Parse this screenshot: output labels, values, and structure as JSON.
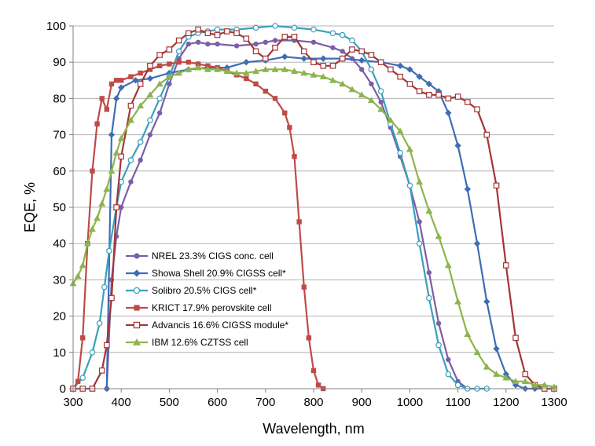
{
  "chart_data": {
    "type": "line",
    "title": "",
    "xlabel": "Wavelength, nm",
    "ylabel": "EQE, %",
    "xlim": [
      300,
      1300
    ],
    "ylim": [
      0,
      100
    ],
    "xticks": [
      300,
      400,
      500,
      600,
      700,
      800,
      900,
      1000,
      1100,
      1200,
      1300
    ],
    "yticks": [
      0,
      10,
      20,
      30,
      40,
      50,
      60,
      70,
      80,
      90,
      100
    ],
    "xtick_labels": [
      "300",
      "400",
      "500",
      "600",
      "700",
      "800",
      "900",
      "1000",
      "1100",
      "1200",
      "1300"
    ],
    "ytick_labels": [
      "0",
      "10",
      "20",
      "30",
      "40",
      "50",
      "60",
      "70",
      "80",
      "90",
      "100"
    ],
    "grid": "horizontal",
    "legend_position": "lower-left inside plot",
    "series": [
      {
        "name": "NREL 23.3% CIGS conc. cell",
        "color": "#7B5EA7",
        "marker": "circle",
        "points": [
          [
            370,
            0
          ],
          [
            380,
            30
          ],
          [
            390,
            42
          ],
          [
            400,
            50
          ],
          [
            420,
            57
          ],
          [
            440,
            63
          ],
          [
            460,
            70
          ],
          [
            480,
            76
          ],
          [
            500,
            84
          ],
          [
            520,
            91
          ],
          [
            540,
            95
          ],
          [
            560,
            95.5
          ],
          [
            580,
            95
          ],
          [
            600,
            95
          ],
          [
            640,
            94.5
          ],
          [
            680,
            95
          ],
          [
            700,
            95.5
          ],
          [
            720,
            96
          ],
          [
            760,
            96
          ],
          [
            800,
            95.5
          ],
          [
            840,
            94
          ],
          [
            860,
            93
          ],
          [
            880,
            91
          ],
          [
            900,
            88
          ],
          [
            920,
            84
          ],
          [
            940,
            79
          ],
          [
            960,
            72
          ],
          [
            980,
            64
          ],
          [
            1000,
            56
          ],
          [
            1020,
            46
          ],
          [
            1040,
            32
          ],
          [
            1060,
            18
          ],
          [
            1080,
            8
          ],
          [
            1100,
            2
          ],
          [
            1120,
            0
          ]
        ]
      },
      {
        "name": "Showa Shell 20.9% CIGSS cell*",
        "color": "#3D6DB5",
        "marker": "diamond",
        "points": [
          [
            370,
            0
          ],
          [
            380,
            70
          ],
          [
            390,
            80
          ],
          [
            400,
            83
          ],
          [
            430,
            85
          ],
          [
            460,
            85.5
          ],
          [
            500,
            87
          ],
          [
            540,
            88
          ],
          [
            580,
            88.5
          ],
          [
            620,
            88.5
          ],
          [
            660,
            90
          ],
          [
            700,
            90.5
          ],
          [
            740,
            91.5
          ],
          [
            780,
            91
          ],
          [
            820,
            91
          ],
          [
            860,
            91
          ],
          [
            900,
            90.5
          ],
          [
            940,
            90
          ],
          [
            980,
            89
          ],
          [
            1000,
            88
          ],
          [
            1020,
            86
          ],
          [
            1040,
            84
          ],
          [
            1060,
            82
          ],
          [
            1080,
            76
          ],
          [
            1100,
            67
          ],
          [
            1120,
            55
          ],
          [
            1140,
            40
          ],
          [
            1160,
            24
          ],
          [
            1180,
            11
          ],
          [
            1200,
            4
          ],
          [
            1220,
            1
          ],
          [
            1240,
            0
          ],
          [
            1260,
            0
          ],
          [
            1280,
            0
          ],
          [
            1300,
            0
          ]
        ]
      },
      {
        "name": "Solibro 20.5% CIGS cell*",
        "color": "#3AA0BE",
        "marker": "open-circle",
        "points": [
          [
            300,
            0
          ],
          [
            320,
            3
          ],
          [
            340,
            10
          ],
          [
            355,
            18
          ],
          [
            365,
            28
          ],
          [
            375,
            38
          ],
          [
            390,
            50
          ],
          [
            400,
            57
          ],
          [
            420,
            63
          ],
          [
            440,
            68
          ],
          [
            460,
            74
          ],
          [
            480,
            80
          ],
          [
            500,
            86
          ],
          [
            520,
            93
          ],
          [
            540,
            97
          ],
          [
            560,
            98
          ],
          [
            580,
            98.5
          ],
          [
            600,
            99
          ],
          [
            640,
            99
          ],
          [
            680,
            99.5
          ],
          [
            720,
            100
          ],
          [
            760,
            99.5
          ],
          [
            800,
            99
          ],
          [
            840,
            98
          ],
          [
            860,
            97.5
          ],
          [
            880,
            96
          ],
          [
            900,
            93
          ],
          [
            920,
            88
          ],
          [
            940,
            82
          ],
          [
            960,
            73
          ],
          [
            980,
            65
          ],
          [
            1000,
            56
          ],
          [
            1020,
            40
          ],
          [
            1040,
            25
          ],
          [
            1060,
            12
          ],
          [
            1080,
            4
          ],
          [
            1100,
            1
          ],
          [
            1120,
            0
          ],
          [
            1140,
            0
          ],
          [
            1160,
            0
          ]
        ]
      },
      {
        "name": "KRICT 17.9% perovskite cell",
        "color": "#BE4B48",
        "marker": "square",
        "points": [
          [
            300,
            0
          ],
          [
            310,
            2
          ],
          [
            320,
            14
          ],
          [
            330,
            40
          ],
          [
            340,
            60
          ],
          [
            350,
            73
          ],
          [
            360,
            80
          ],
          [
            370,
            77
          ],
          [
            380,
            84
          ],
          [
            390,
            85
          ],
          [
            400,
            85
          ],
          [
            420,
            86
          ],
          [
            440,
            87
          ],
          [
            460,
            88
          ],
          [
            480,
            89
          ],
          [
            500,
            89.5
          ],
          [
            520,
            90
          ],
          [
            540,
            90
          ],
          [
            560,
            89.5
          ],
          [
            580,
            89
          ],
          [
            600,
            88.5
          ],
          [
            620,
            87.5
          ],
          [
            640,
            86.5
          ],
          [
            660,
            85.5
          ],
          [
            680,
            84
          ],
          [
            700,
            82
          ],
          [
            720,
            80
          ],
          [
            740,
            76
          ],
          [
            750,
            72
          ],
          [
            760,
            64
          ],
          [
            770,
            46
          ],
          [
            780,
            28
          ],
          [
            790,
            14
          ],
          [
            800,
            5
          ],
          [
            810,
            1
          ],
          [
            820,
            0
          ]
        ]
      },
      {
        "name": "Advancis 16.6% CIGSS module*",
        "color": "#A33535",
        "marker": "open-square",
        "points": [
          [
            300,
            0
          ],
          [
            320,
            0
          ],
          [
            340,
            0
          ],
          [
            360,
            5
          ],
          [
            370,
            12
          ],
          [
            380,
            25
          ],
          [
            390,
            50
          ],
          [
            400,
            64
          ],
          [
            420,
            78
          ],
          [
            440,
            84
          ],
          [
            460,
            89
          ],
          [
            480,
            92
          ],
          [
            500,
            93.5
          ],
          [
            520,
            96
          ],
          [
            540,
            98
          ],
          [
            560,
            99
          ],
          [
            580,
            98
          ],
          [
            600,
            97.5
          ],
          [
            620,
            98.5
          ],
          [
            640,
            98
          ],
          [
            660,
            96.5
          ],
          [
            680,
            93
          ],
          [
            700,
            91
          ],
          [
            720,
            94
          ],
          [
            740,
            97
          ],
          [
            760,
            97
          ],
          [
            780,
            93
          ],
          [
            800,
            90
          ],
          [
            820,
            89
          ],
          [
            840,
            89
          ],
          [
            860,
            91
          ],
          [
            880,
            93.5
          ],
          [
            900,
            93
          ],
          [
            920,
            92
          ],
          [
            940,
            90
          ],
          [
            960,
            88
          ],
          [
            980,
            86
          ],
          [
            1000,
            84
          ],
          [
            1020,
            82
          ],
          [
            1040,
            81
          ],
          [
            1060,
            81
          ],
          [
            1080,
            80
          ],
          [
            1100,
            80.5
          ],
          [
            1120,
            79
          ],
          [
            1140,
            77
          ],
          [
            1160,
            70
          ],
          [
            1180,
            56
          ],
          [
            1200,
            34
          ],
          [
            1220,
            14
          ],
          [
            1240,
            4
          ],
          [
            1260,
            1
          ],
          [
            1280,
            0
          ],
          [
            1300,
            0
          ]
        ]
      },
      {
        "name": "IBM 12.6% CZTSS cell",
        "color": "#8DB44D",
        "marker": "triangle",
        "points": [
          [
            300,
            29
          ],
          [
            310,
            31
          ],
          [
            320,
            34
          ],
          [
            330,
            40
          ],
          [
            340,
            44
          ],
          [
            350,
            47
          ],
          [
            360,
            51
          ],
          [
            370,
            55
          ],
          [
            380,
            60
          ],
          [
            390,
            65
          ],
          [
            400,
            69
          ],
          [
            420,
            74
          ],
          [
            440,
            78
          ],
          [
            460,
            81
          ],
          [
            480,
            84
          ],
          [
            500,
            86
          ],
          [
            520,
            87
          ],
          [
            540,
            88
          ],
          [
            560,
            88.5
          ],
          [
            580,
            88
          ],
          [
            600,
            88
          ],
          [
            620,
            87.5
          ],
          [
            640,
            87
          ],
          [
            660,
            87
          ],
          [
            680,
            87.5
          ],
          [
            700,
            88
          ],
          [
            720,
            88
          ],
          [
            740,
            88
          ],
          [
            760,
            87.5
          ],
          [
            780,
            87
          ],
          [
            800,
            86.5
          ],
          [
            820,
            86
          ],
          [
            840,
            85
          ],
          [
            860,
            84
          ],
          [
            880,
            82.5
          ],
          [
            900,
            81
          ],
          [
            920,
            79.5
          ],
          [
            940,
            77
          ],
          [
            960,
            74
          ],
          [
            980,
            71
          ],
          [
            1000,
            66
          ],
          [
            1020,
            57
          ],
          [
            1040,
            49
          ],
          [
            1060,
            42
          ],
          [
            1080,
            34
          ],
          [
            1100,
            24
          ],
          [
            1120,
            15
          ],
          [
            1140,
            10
          ],
          [
            1160,
            6
          ],
          [
            1180,
            4
          ],
          [
            1200,
            3
          ],
          [
            1220,
            2
          ],
          [
            1240,
            2
          ],
          [
            1260,
            1
          ],
          [
            1280,
            1
          ],
          [
            1300,
            0.5
          ]
        ]
      }
    ]
  }
}
